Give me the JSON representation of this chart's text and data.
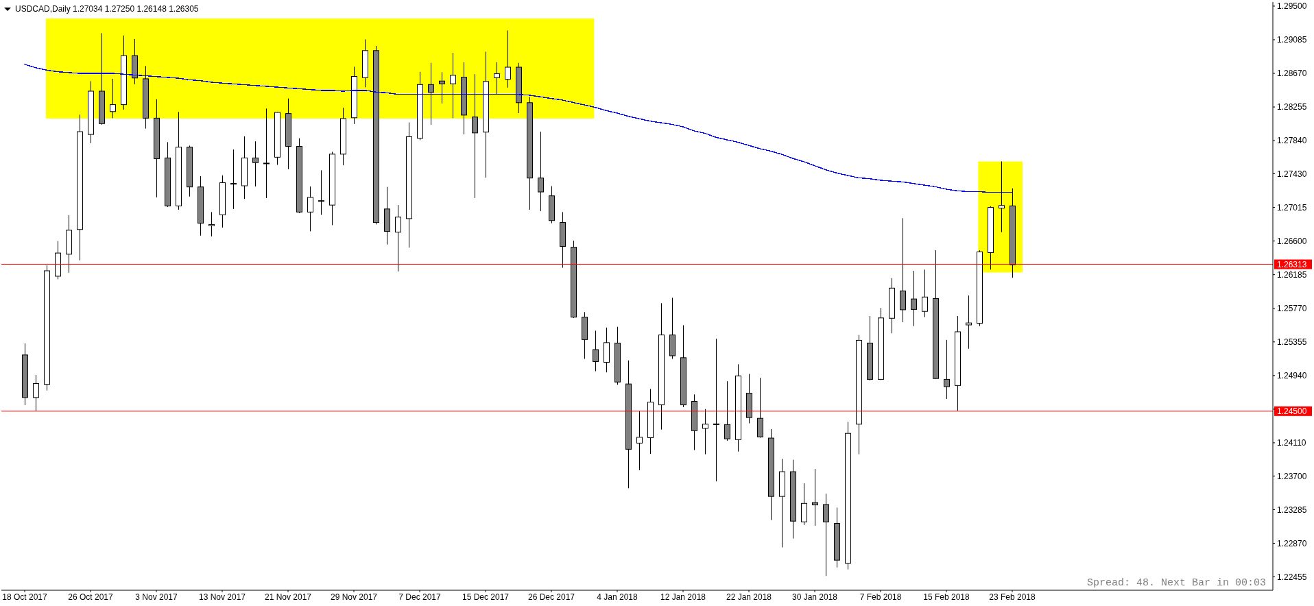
{
  "chart_data": {
    "type": "candlestick",
    "title": "USDCAD,Daily 1.27034 1.27250 1.26148 1.26305",
    "categories": [
      "18 Oct 2017",
      null,
      null,
      null,
      null,
      null,
      "26 Oct 2017",
      null,
      null,
      null,
      null,
      null,
      "3 Nov 2017",
      null,
      null,
      null,
      null,
      null,
      "13 Nov 2017",
      null,
      null,
      null,
      null,
      null,
      "21 Nov 2017",
      null,
      null,
      null,
      null,
      null,
      "29 Nov 2017",
      null,
      null,
      null,
      null,
      null,
      "7 Dec 2017",
      null,
      null,
      null,
      null,
      null,
      "15 Dec 2017",
      null,
      null,
      null,
      null,
      null,
      "26 Dec 2017",
      null,
      null,
      null,
      null,
      null,
      "4 Jan 2018",
      null,
      null,
      null,
      null,
      null,
      "12 Jan 2018",
      null,
      null,
      null,
      null,
      null,
      "22 Jan 2018",
      null,
      null,
      null,
      null,
      null,
      "30 Jan 2018",
      null,
      null,
      null,
      null,
      null,
      "7 Feb 2018",
      null,
      null,
      null,
      null,
      null,
      "15 Feb 2018",
      null,
      null,
      null,
      null,
      null,
      "23 Feb 2018"
    ],
    "ohlc": [
      [
        1.25194,
        1.25337,
        1.24574,
        1.24669
      ],
      [
        1.24669,
        1.24946,
        1.24507,
        1.24841
      ],
      [
        1.24831,
        1.263,
        1.24755,
        1.26233
      ],
      [
        1.26166,
        1.266,
        1.26128,
        1.26452
      ],
      [
        1.26438,
        1.2692,
        1.26209,
        1.26734
      ],
      [
        1.26743,
        1.2816,
        1.26362,
        1.2795
      ],
      [
        1.27916,
        1.28574,
        1.27807,
        1.2845
      ],
      [
        1.2845,
        1.29166,
        1.28036,
        1.2805
      ],
      [
        1.28198,
        1.28603,
        1.28117,
        1.28284
      ],
      [
        1.28284,
        1.29137,
        1.28222,
        1.28889
      ],
      [
        1.28889,
        1.29094,
        1.28536,
        1.28613
      ],
      [
        1.28603,
        1.28761,
        1.27988,
        1.28117
      ],
      [
        1.28117,
        1.2835,
        1.27139,
        1.27616
      ],
      [
        1.27626,
        1.27821,
        1.2702,
        1.27034
      ],
      [
        1.27034,
        1.28193,
        1.26987,
        1.27759
      ],
      [
        1.27759,
        1.27778,
        1.27149,
        1.27268
      ],
      [
        1.27268,
        1.27401,
        1.26667,
        1.2682
      ],
      [
        1.26791,
        1.26958,
        1.26658,
        1.26805
      ],
      [
        1.26924,
        1.27411,
        1.26767,
        1.2732
      ],
      [
        1.27305,
        1.2773,
        1.26996,
        1.27311
      ],
      [
        1.27282,
        1.27893,
        1.2712,
        1.27626
      ],
      [
        1.27626,
        1.27831,
        1.27273,
        1.27568
      ],
      [
        1.27562,
        1.28236,
        1.2713,
        1.27559
      ],
      [
        1.27635,
        1.28193,
        1.2754,
        1.28188
      ],
      [
        1.28174,
        1.2836,
        1.27487,
        1.27769
      ],
      [
        1.27769,
        1.27869,
        1.26944,
        1.26958
      ],
      [
        1.26958,
        1.27273,
        1.2672,
        1.27139
      ],
      [
        1.27094,
        1.27473,
        1.26924,
        1.27099
      ],
      [
        1.27044,
        1.27702,
        1.26796,
        1.27673
      ],
      [
        1.27673,
        1.28246,
        1.27535,
        1.28112
      ],
      [
        1.28122,
        1.28752,
        1.28045,
        1.28632
      ],
      [
        1.28617,
        1.29089,
        1.28498,
        1.28951
      ],
      [
        1.28951,
        1.29008,
        1.26805,
        1.26829
      ],
      [
        1.26996,
        1.27268,
        1.26557,
        1.2672
      ],
      [
        1.2671,
        1.27044,
        1.26224,
        1.26896
      ],
      [
        1.26877,
        1.28064,
        1.26519,
        1.27888
      ],
      [
        1.27869,
        1.28689,
        1.27845,
        1.28532
      ],
      [
        1.28532,
        1.28799,
        1.28036,
        1.28436
      ],
      [
        1.28575,
        1.28684,
        1.28298,
        1.28541
      ],
      [
        1.28541,
        1.28923,
        1.28117,
        1.28646
      ],
      [
        1.28622,
        1.28808,
        1.27916,
        1.28155
      ],
      [
        1.28131,
        1.2866,
        1.2713,
        1.27935
      ],
      [
        1.27945,
        1.28937,
        1.27382,
        1.2857
      ],
      [
        1.28617,
        1.28808,
        1.28412,
        1.28665
      ],
      [
        1.28598,
        1.29199,
        1.28494,
        1.28746
      ],
      [
        1.28746,
        1.28799,
        1.28179,
        1.28308
      ],
      [
        1.28308,
        1.28379,
        1.26987,
        1.27378
      ],
      [
        1.27378,
        1.2795,
        1.26968,
        1.27206
      ],
      [
        1.27158,
        1.27278,
        1.2682,
        1.26853
      ],
      [
        1.26829,
        1.26958,
        1.26271,
        1.26534
      ],
      [
        1.26524,
        1.26605,
        1.25651,
        1.25661
      ],
      [
        1.25661,
        1.25723,
        1.25146,
        1.25384
      ],
      [
        1.2526,
        1.25494,
        1.24993,
        1.25112
      ],
      [
        1.25103,
        1.25532,
        1.24979,
        1.25346
      ],
      [
        1.25341,
        1.25542,
        1.24826,
        1.2486
      ],
      [
        1.24836,
        1.25127,
        1.23548,
        1.2403
      ],
      [
        1.24106,
        1.24502,
        1.23772,
        1.24178
      ],
      [
        1.24173,
        1.24774,
        1.23973,
        1.24612
      ],
      [
        1.24578,
        1.25833,
        1.24273,
        1.25441
      ],
      [
        1.25441,
        1.259,
        1.25146,
        1.25184
      ],
      [
        1.2516,
        1.25561,
        1.2455,
        1.24578
      ],
      [
        1.24621,
        1.24707,
        1.2402,
        1.24259
      ],
      [
        1.24288,
        1.24526,
        1.23968,
        1.2434
      ],
      [
        1.24343,
        1.25394,
        1.23634,
        1.24338
      ],
      [
        1.24335,
        1.24869,
        1.24135,
        1.24159
      ],
      [
        1.24149,
        1.25079,
        1.24001,
        1.24936
      ],
      [
        1.24722,
        1.2496,
        1.2435,
        1.24421
      ],
      [
        1.24412,
        1.24912,
        1.24173,
        1.24183
      ],
      [
        1.24168,
        1.24278,
        1.23157,
        1.23448
      ],
      [
        1.23448,
        1.23911,
        1.22819,
        1.23753
      ],
      [
        1.23753,
        1.23901,
        1.22928,
        1.23143
      ],
      [
        1.23134,
        1.2361,
        1.23095,
        1.23362
      ],
      [
        1.23372,
        1.23787,
        1.23086,
        1.23343
      ],
      [
        1.23348,
        1.23482,
        1.22466,
        1.23134
      ],
      [
        1.23115,
        1.2331,
        1.22571,
        1.22661
      ],
      [
        1.22623,
        1.24368,
        1.22547,
        1.24226
      ],
      [
        1.2434,
        1.25441,
        1.23968,
        1.25375
      ],
      [
        1.25341,
        1.25675,
        1.24879,
        1.24893
      ],
      [
        1.24893,
        1.25775,
        1.24885,
        1.25651
      ],
      [
        1.25647,
        1.26143,
        1.25461,
        1.26019
      ],
      [
        1.25985,
        1.26882,
        1.25599,
        1.25752
      ],
      [
        1.25885,
        1.26233,
        1.25551,
        1.25756
      ],
      [
        1.25732,
        1.26248,
        1.25661,
        1.25909
      ],
      [
        1.2589,
        1.26486,
        1.24898,
        1.24903
      ],
      [
        1.24893,
        1.2538,
        1.2465,
        1.24803
      ],
      [
        1.24817,
        1.25675,
        1.24507,
        1.2548
      ],
      [
        1.25565,
        1.25928,
        1.2527,
        1.25589
      ],
      [
        1.25585,
        1.26486,
        1.25551,
        1.26467
      ],
      [
        1.26457,
        1.2703,
        1.26248,
        1.27015
      ],
      [
        1.27006,
        1.27583,
        1.2671,
        1.27039
      ],
      [
        1.27034,
        1.2725,
        1.26148,
        1.26305
      ]
    ],
    "colors": [
      "#808080",
      "#ffffff",
      "#ffffff",
      "#ffffff",
      "#ffffff",
      "#ffffff",
      "#ffffff",
      "#808080",
      "#ffffff",
      "#ffffff",
      "#808080",
      "#808080",
      "#808080",
      "#808080",
      "#ffffff",
      "#808080",
      "#808080",
      "#ffffff",
      "#ffffff",
      "#ffffff",
      "#ffffff",
      "#808080",
      "#808080",
      "#ffffff",
      "#808080",
      "#808080",
      "#ffffff",
      "#ffffff",
      "#ffffff",
      "#ffffff",
      "#ffffff",
      "#ffffff",
      "#808080",
      "#808080",
      "#ffffff",
      "#ffffff",
      "#ffffff",
      "#808080",
      "#808080",
      "#ffffff",
      "#808080",
      "#808080",
      "#ffffff",
      "#ffffff",
      "#ffffff",
      "#808080",
      "#808080",
      "#808080",
      "#808080",
      "#808080",
      "#808080",
      "#808080",
      "#808080",
      "#ffffff",
      "#808080",
      "#808080",
      "#ffffff",
      "#ffffff",
      "#ffffff",
      "#808080",
      "#808080",
      "#808080",
      "#ffffff",
      "#808080",
      "#808080",
      "#ffffff",
      "#808080",
      "#808080",
      "#808080",
      "#ffffff",
      "#808080",
      "#ffffff",
      "#808080",
      "#808080",
      "#808080",
      "#ffffff",
      "#ffffff",
      "#808080",
      "#ffffff",
      "#ffffff",
      "#808080",
      "#808080",
      "#ffffff",
      "#808080",
      "#808080",
      "#ffffff",
      "#ffffff",
      "#ffffff",
      "#ffffff",
      "#ffffff",
      "#808080"
    ],
    "series": [
      {
        "type": "line",
        "color": "#0000ff",
        "values": [
          1.2878,
          1.2874,
          1.2871,
          1.2869,
          1.2868,
          1.2867,
          1.2867,
          1.2867,
          1.2867,
          1.2866,
          1.2865,
          1.2864,
          1.2863,
          1.2862,
          1.2861,
          1.2859,
          1.2858,
          1.2856,
          1.2855,
          1.2854,
          1.2853,
          1.2852,
          1.2851,
          1.285,
          1.2849,
          1.2848,
          1.2847,
          1.2846,
          1.2846,
          1.2845,
          1.2846,
          1.2846,
          1.2844,
          1.2843,
          1.2841,
          1.2841,
          1.2841,
          1.2841,
          1.2841,
          1.2841,
          1.2841,
          1.2841,
          1.2841,
          1.2841,
          1.2841,
          1.2841,
          1.284,
          1.2838,
          1.2836,
          1.2834,
          1.2831,
          1.2828,
          1.2825,
          1.2821,
          1.2818,
          1.2814,
          1.2811,
          1.2808,
          1.2806,
          1.2804,
          1.2801,
          1.2796,
          1.2793,
          1.2788,
          1.2785,
          1.2782,
          1.2778,
          1.2774,
          1.2771,
          1.2767,
          1.2762,
          1.2758,
          1.2753,
          1.2748,
          1.2744,
          1.2741,
          1.2738,
          1.2737,
          1.2735,
          1.2734,
          1.2733,
          1.2731,
          1.2729,
          1.2727,
          1.2724,
          1.2722,
          1.2721,
          1.2721,
          1.272,
          1.272,
          1.272
        ]
      }
    ],
    "ylim": [
      1.2229,
      1.2955
    ],
    "yticks": [
      {
        "value": 1.295,
        "label": "1.29500"
      },
      1.29085,
      {
        "value": 1.2867,
        "label": "1.28670"
      },
      1.28255,
      {
        "value": 1.2784,
        "label": "1.27840"
      },
      {
        "value": 1.2743,
        "label": "1.27430"
      },
      1.27015,
      {
        "value": 1.266,
        "label": "1.26600"
      },
      1.26185,
      {
        "value": 1.2577,
        "label": "1.25770"
      },
      1.25355,
      {
        "value": 1.2494,
        "label": "1.24940"
      },
      {
        "value": 1.24525,
        "label": null
      },
      {
        "value": 1.2411,
        "label": "1.24110"
      },
      {
        "value": 1.237,
        "label": "1.23700"
      },
      1.23285,
      {
        "value": 1.2287,
        "label": "1.22870"
      },
      1.22455
    ],
    "ref_lines": [
      {
        "axis": "y",
        "value": 1.26313,
        "label": "1.26313",
        "color": "#ff0000"
      },
      {
        "axis": "y",
        "value": 1.245,
        "label": "1.24500",
        "color": "#ff0000"
      }
    ],
    "annotations": [
      "Spread: 48. Next Bar in 00:03"
    ]
  }
}
